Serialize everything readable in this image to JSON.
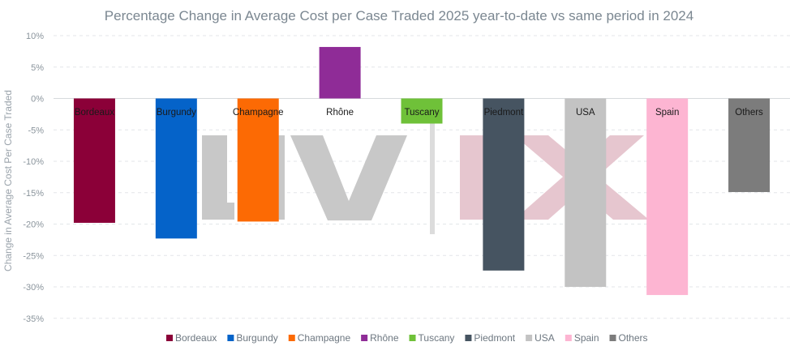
{
  "chart_data": {
    "type": "bar",
    "title": "Percentage Change in Average Cost per Case Traded 2025 year-to-date vs same period in 2024",
    "ylabel": "Change in Average Cost Per Case Traded",
    "xlabel": "",
    "ylim": [
      -35,
      10
    ],
    "yticks": [
      10,
      5,
      0,
      -5,
      -10,
      -15,
      -20,
      -25,
      -30,
      -35
    ],
    "ytick_labels": [
      "10%",
      "5%",
      "0%",
      "-5%",
      "-10%",
      "-15%",
      "-20%",
      "-25%",
      "-30%",
      "-35%"
    ],
    "grid": true,
    "legend_position": "bottom",
    "categories": [
      "Bordeaux",
      "Burgundy",
      "Champagne",
      "Rhône",
      "Tuscany",
      "Piedmont",
      "USA",
      "Spain",
      "Others"
    ],
    "values": [
      -19.8,
      -22.3,
      -19.6,
      8.2,
      -4.0,
      -27.4,
      -30.0,
      -31.3,
      -14.9
    ],
    "colors": [
      "#8b0038",
      "#0563c9",
      "#fc6a04",
      "#8f2c97",
      "#6fc139",
      "#465461",
      "#c3c3c3",
      "#fdb5d2",
      "#7c7c7c"
    ]
  },
  "watermark": {
    "logo_text": "LIV-EX",
    "color_grey": "#c8c8c8",
    "color_pink": "#e6c6cf"
  }
}
